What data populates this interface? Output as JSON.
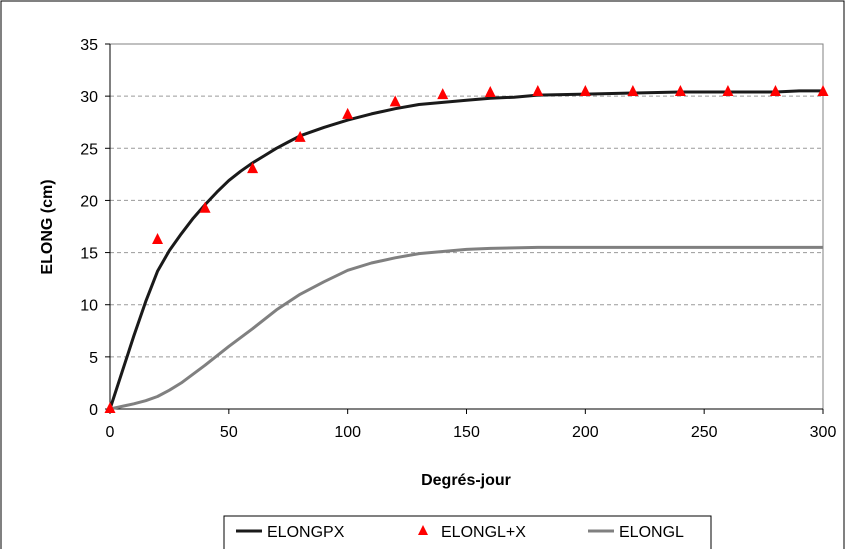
{
  "chart_data": {
    "type": "line",
    "title": "",
    "xlabel": "Degrés-jour",
    "ylabel": "ELONG (cm)",
    "xlim": [
      0,
      300
    ],
    "ylim": [
      0,
      35
    ],
    "x_ticks": [
      0,
      50,
      100,
      150,
      200,
      250,
      300
    ],
    "y_ticks": [
      0,
      5,
      10,
      15,
      20,
      25,
      30,
      35
    ],
    "grid": "horizontal-dashed",
    "legend_position": "bottom",
    "series": [
      {
        "name": "ELONGPX",
        "style": "line",
        "color": "#1a1a1a",
        "points": [
          [
            0,
            0
          ],
          [
            5,
            3.5
          ],
          [
            10,
            7.0
          ],
          [
            15,
            10.3
          ],
          [
            20,
            13.2
          ],
          [
            25,
            15.2
          ],
          [
            30,
            16.8
          ],
          [
            35,
            18.3
          ],
          [
            40,
            19.6
          ],
          [
            45,
            20.8
          ],
          [
            50,
            21.9
          ],
          [
            55,
            22.8
          ],
          [
            60,
            23.6
          ],
          [
            65,
            24.3
          ],
          [
            70,
            25.0
          ],
          [
            75,
            25.6
          ],
          [
            80,
            26.2
          ],
          [
            90,
            27.0
          ],
          [
            100,
            27.7
          ],
          [
            110,
            28.3
          ],
          [
            120,
            28.8
          ],
          [
            130,
            29.2
          ],
          [
            140,
            29.4
          ],
          [
            150,
            29.6
          ],
          [
            160,
            29.8
          ],
          [
            170,
            29.9
          ],
          [
            180,
            30.1
          ],
          [
            200,
            30.2
          ],
          [
            220,
            30.3
          ],
          [
            240,
            30.4
          ],
          [
            260,
            30.4
          ],
          [
            280,
            30.4
          ],
          [
            290,
            30.5
          ],
          [
            300,
            30.5
          ]
        ]
      },
      {
        "name": "ELONGL+X",
        "style": "marker-triangle",
        "color": "#ff0000",
        "points": [
          [
            0,
            0
          ],
          [
            20,
            16.2
          ],
          [
            40,
            19.2
          ],
          [
            60,
            23.0
          ],
          [
            80,
            26.0
          ],
          [
            100,
            28.2
          ],
          [
            120,
            29.4
          ],
          [
            140,
            30.1
          ],
          [
            160,
            30.3
          ],
          [
            180,
            30.4
          ],
          [
            200,
            30.4
          ],
          [
            220,
            30.4
          ],
          [
            240,
            30.4
          ],
          [
            260,
            30.4
          ],
          [
            280,
            30.4
          ],
          [
            300,
            30.4
          ]
        ]
      },
      {
        "name": "ELONGL",
        "style": "line",
        "color": "#808080",
        "points": [
          [
            0,
            0
          ],
          [
            10,
            0.5
          ],
          [
            15,
            0.8
          ],
          [
            20,
            1.2
          ],
          [
            25,
            1.8
          ],
          [
            30,
            2.5
          ],
          [
            40,
            4.2
          ],
          [
            50,
            6.0
          ],
          [
            60,
            7.7
          ],
          [
            70,
            9.5
          ],
          [
            80,
            11.0
          ],
          [
            90,
            12.2
          ],
          [
            100,
            13.3
          ],
          [
            110,
            14.0
          ],
          [
            120,
            14.5
          ],
          [
            130,
            14.9
          ],
          [
            140,
            15.1
          ],
          [
            150,
            15.3
          ],
          [
            160,
            15.4
          ],
          [
            180,
            15.5
          ],
          [
            200,
            15.5
          ],
          [
            250,
            15.5
          ],
          [
            300,
            15.5
          ]
        ]
      }
    ]
  }
}
